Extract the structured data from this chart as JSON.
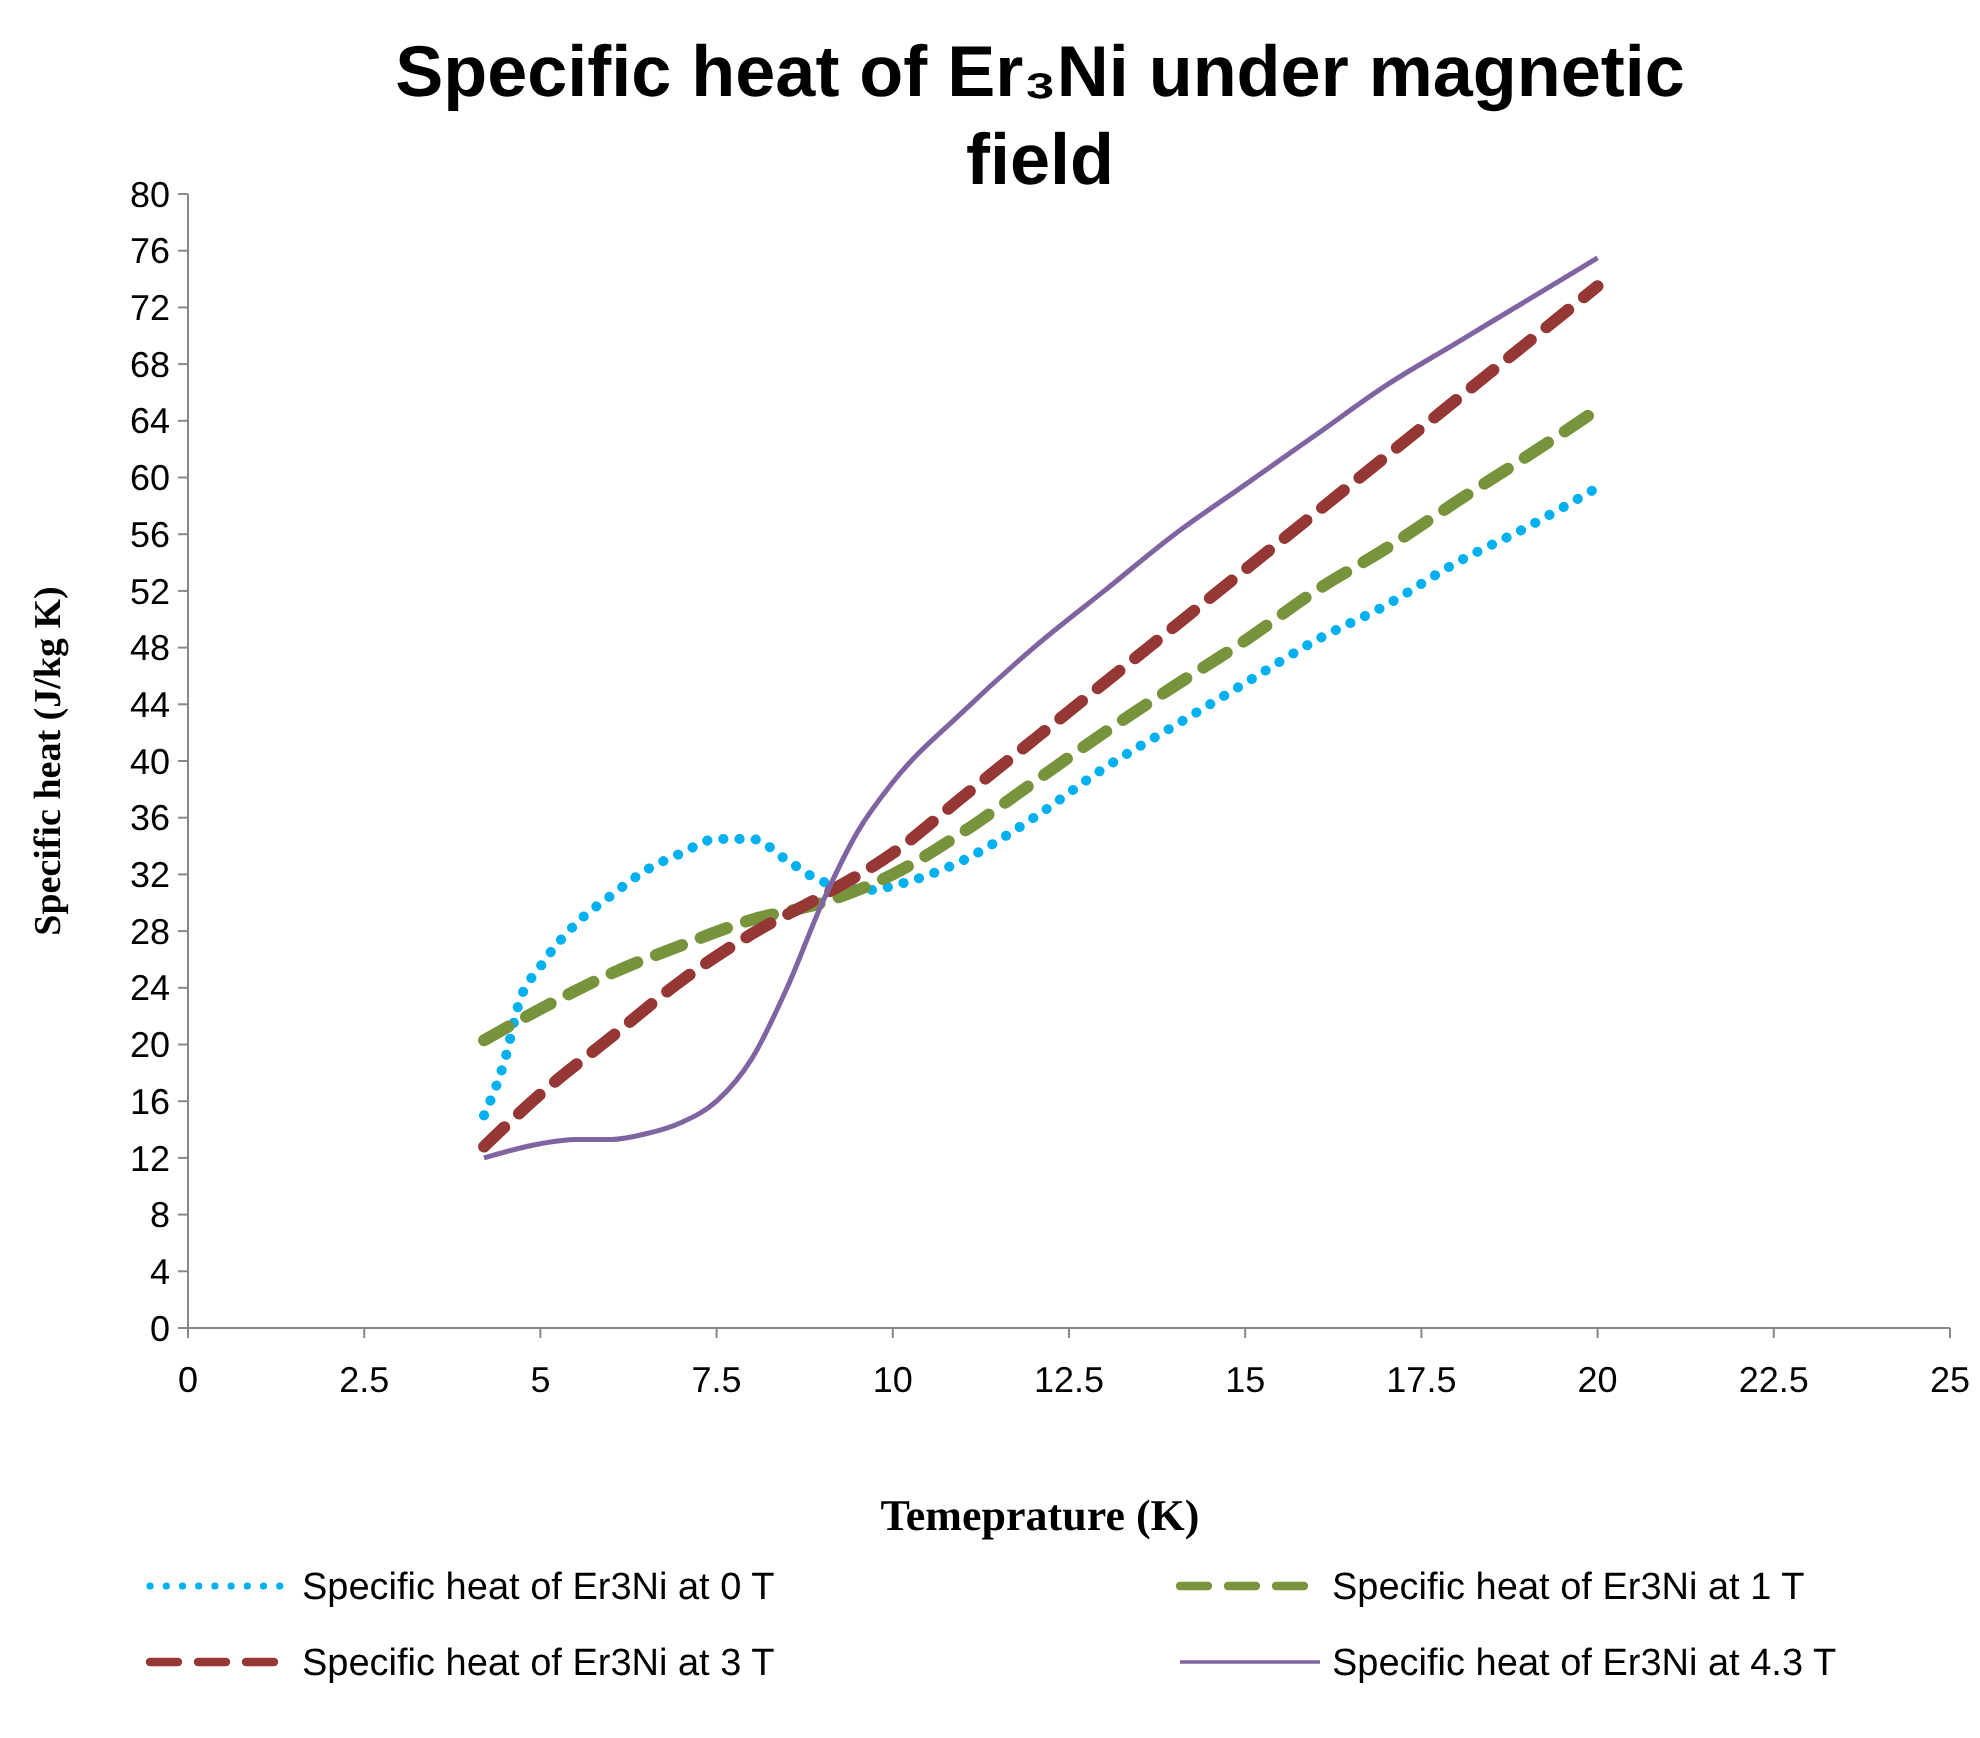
{
  "chart_data": {
    "type": "line",
    "title": "Specific heat of Er₃Ni under magnetic field",
    "xlabel": "Temeprature (K)",
    "ylabel": "Specific heat (J/kg K)",
    "xlim": [
      0,
      25
    ],
    "xticks": [
      0,
      2.5,
      5,
      7.5,
      10,
      12.5,
      15,
      17.5,
      20,
      22.5,
      25
    ],
    "ylim": [
      0,
      80
    ],
    "yticks": [
      0,
      4,
      8,
      12,
      16,
      20,
      24,
      28,
      32,
      36,
      40,
      44,
      48,
      52,
      56,
      60,
      64,
      68,
      72,
      76,
      80
    ],
    "grid": false,
    "legend": "bottom",
    "marker": "none",
    "series": [
      {
        "name": "Specific heat of Er3Ni at 0 T",
        "color": "#00b0f0",
        "line_style": "dotted",
        "x": [
          4.2,
          4.5,
          4.7,
          5,
          5.5,
          6,
          6.5,
          7,
          7.5,
          8,
          8.5,
          9,
          9.7,
          10,
          11,
          12,
          13,
          14,
          15,
          16,
          17,
          18,
          19,
          20
        ],
        "values": [
          15,
          19,
          23,
          25.5,
          28.5,
          30.5,
          32.3,
          33.5,
          34.5,
          34.5,
          33,
          31.5,
          30.9,
          31.2,
          33,
          36,
          39.5,
          42.5,
          45.5,
          48.5,
          51,
          54,
          56.5,
          59.3
        ]
      },
      {
        "name": "Specific heat of Er3Ni at 1 T",
        "color": "#77933c",
        "line_style": "dashed",
        "x": [
          4.2,
          5,
          6,
          7,
          8,
          9,
          10,
          11,
          12,
          13,
          14,
          15,
          16,
          17,
          18,
          19,
          20
        ],
        "values": [
          20.3,
          22.5,
          25,
          27,
          28.8,
          30,
          32,
          35,
          38.5,
          42,
          45.3,
          48.5,
          52,
          55,
          58.3,
          61.5,
          64.8
        ]
      },
      {
        "name": "Specific heat of Er3Ni at 3 T",
        "color": "#953735",
        "line_style": "dashed",
        "x": [
          4.2,
          5,
          6,
          7,
          8,
          9,
          10,
          11,
          12,
          13,
          14,
          15,
          16,
          17,
          18,
          19,
          20
        ],
        "values": [
          12.8,
          16.5,
          20.5,
          24.5,
          27.8,
          30.5,
          33.5,
          37.5,
          41.5,
          45.5,
          49.5,
          53.5,
          57.5,
          61.5,
          65.5,
          69.5,
          73.5
        ]
      },
      {
        "name": "Specific heat of Er3Ni at 4.3 T",
        "color": "#8064a2",
        "line_style": "solid",
        "x": [
          4.2,
          5,
          5.5,
          6,
          6.5,
          7,
          7.5,
          8,
          8.5,
          9,
          9.5,
          10,
          11,
          12,
          13,
          14,
          15,
          16,
          17,
          18,
          19,
          20
        ],
        "values": [
          12,
          13,
          13.3,
          13.3,
          13.7,
          14.5,
          16,
          19,
          24,
          30,
          35,
          38.5,
          43.5,
          48,
          52,
          56,
          59.5,
          63,
          66.5,
          69.5,
          72.5,
          75.5
        ]
      }
    ]
  }
}
